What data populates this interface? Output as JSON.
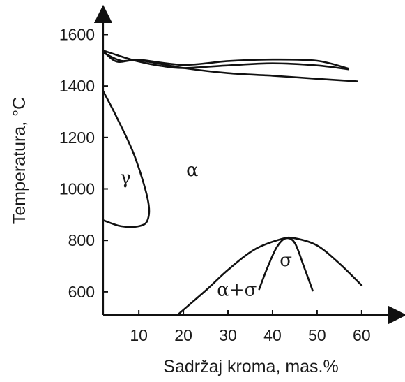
{
  "chart_data": {
    "type": "phase-diagram",
    "xlabel": "Sadržaj kroma, mas.%",
    "ylabel": "Temperatura, °C",
    "xlim": [
      2,
      68
    ],
    "ylim": [
      510,
      1680
    ],
    "xticks": [
      10,
      20,
      30,
      40,
      50,
      60
    ],
    "yticks": [
      600,
      800,
      1000,
      1200,
      1400,
      1600
    ],
    "x_tick_labels": [
      "10",
      "20",
      "30",
      "40",
      "50",
      "60"
    ],
    "y_tick_labels": [
      "600",
      "800",
      "1000",
      "1200",
      "1400",
      "1600"
    ],
    "grid": false,
    "regions": [
      {
        "label": "γ",
        "x": 7,
        "y": 1020
      },
      {
        "label": "α",
        "x": 22,
        "y": 1050
      },
      {
        "label": "σ",
        "x": 43,
        "y": 700
      },
      {
        "label": "α+σ",
        "x": 32,
        "y": 585
      }
    ],
    "curves": [
      {
        "name": "liquidus",
        "points": [
          [
            2,
            1538
          ],
          [
            6,
            1515
          ],
          [
            10,
            1495
          ],
          [
            15,
            1478
          ],
          [
            20,
            1470
          ],
          [
            30,
            1480
          ],
          [
            40,
            1488
          ],
          [
            50,
            1480
          ],
          [
            57,
            1465
          ]
        ]
      },
      {
        "name": "solidus",
        "points": [
          [
            2,
            1538
          ],
          [
            5,
            1495
          ],
          [
            10,
            1500
          ],
          [
            20,
            1470
          ],
          [
            30,
            1450
          ],
          [
            40,
            1440
          ],
          [
            50,
            1428
          ],
          [
            59,
            1418
          ]
        ]
      },
      {
        "name": "upper-branch",
        "points": [
          [
            2,
            1530
          ],
          [
            6,
            1498
          ],
          [
            10,
            1502
          ],
          [
            20,
            1482
          ],
          [
            30,
            1497
          ],
          [
            40,
            1503
          ],
          [
            50,
            1498
          ],
          [
            57,
            1468
          ]
        ]
      },
      {
        "name": "gamma-loop",
        "points": [
          [
            2,
            1380
          ],
          [
            5,
            1280
          ],
          [
            9,
            1130
          ],
          [
            12,
            960
          ],
          [
            12,
            880
          ],
          [
            10,
            855
          ],
          [
            6,
            855
          ],
          [
            2,
            878
          ]
        ]
      },
      {
        "name": "sigma-solvus-outer",
        "points": [
          [
            19,
            515
          ],
          [
            25,
            605
          ],
          [
            30,
            685
          ],
          [
            36,
            765
          ],
          [
            42,
            805
          ],
          [
            45,
            808
          ],
          [
            50,
            780
          ],
          [
            55,
            710
          ],
          [
            60,
            625
          ]
        ]
      },
      {
        "name": "sigma-inner",
        "points": [
          [
            37,
            610
          ],
          [
            39,
            700
          ],
          [
            41,
            775
          ],
          [
            43,
            808
          ],
          [
            45,
            790
          ],
          [
            47,
            700
          ],
          [
            49,
            605
          ]
        ]
      }
    ]
  }
}
